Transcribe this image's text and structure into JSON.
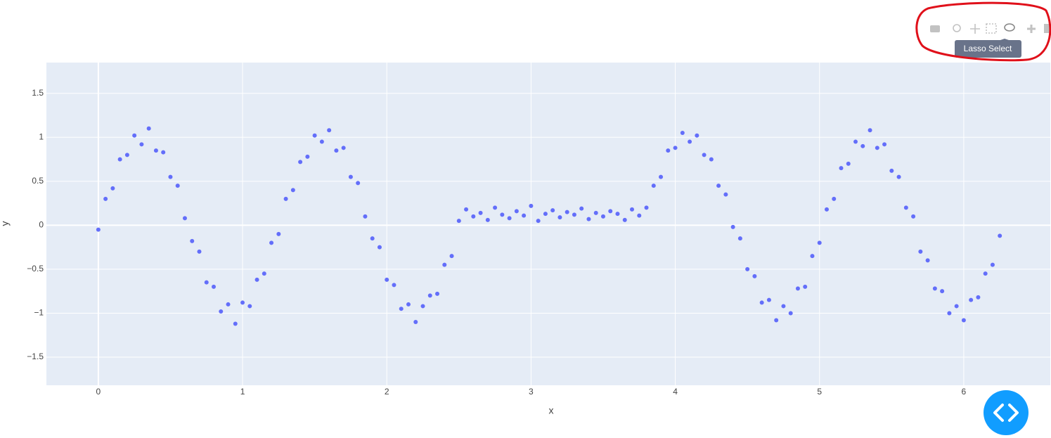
{
  "chart_data": {
    "type": "scatter",
    "x_label": "x",
    "y_label": "y",
    "x": [
      0,
      0.05,
      0.1,
      0.15,
      0.2,
      0.25,
      0.3,
      0.35,
      0.4,
      0.45,
      0.5,
      0.55,
      0.6,
      0.65,
      0.7,
      0.75,
      0.8,
      0.85,
      0.9,
      0.95,
      1,
      1.05,
      1.1,
      1.15,
      1.2,
      1.25,
      1.3,
      1.35,
      1.4,
      1.45,
      1.5,
      1.55,
      1.6,
      1.65,
      1.7,
      1.75,
      1.8,
      1.85,
      1.9,
      1.95,
      2,
      2.05,
      2.1,
      2.15,
      2.2,
      2.25,
      2.3,
      2.35,
      2.4,
      2.45,
      2.5,
      2.55,
      2.6,
      2.65,
      2.7,
      2.75,
      2.8,
      2.85,
      2.9,
      2.95,
      3,
      3.05,
      3.1,
      3.15,
      3.2,
      3.25,
      3.3,
      3.35,
      3.4,
      3.45,
      3.5,
      3.55,
      3.6,
      3.65,
      3.7,
      3.75,
      3.8,
      3.85,
      3.9,
      3.95,
      4,
      4.05,
      4.1,
      4.15,
      4.2,
      4.25,
      4.3,
      4.35,
      4.4,
      4.45,
      4.5,
      4.55,
      4.6,
      4.65,
      4.7,
      4.75,
      4.8,
      4.85,
      4.9,
      4.95,
      5,
      5.05,
      5.1,
      5.15,
      5.2,
      5.25,
      5.3,
      5.35,
      5.4,
      5.45,
      5.5,
      5.55,
      5.6,
      5.65,
      5.7,
      5.75,
      5.8,
      5.85,
      5.9,
      5.95,
      6,
      6.05,
      6.1,
      6.15,
      6.2,
      6.25
    ],
    "series": [
      {
        "color": "#636efa",
        "values": [
          -0.05,
          0.3,
          0.42,
          0.75,
          0.8,
          1.02,
          0.92,
          1.1,
          0.85,
          0.83,
          0.55,
          0.45,
          0.08,
          -0.18,
          -0.3,
          -0.65,
          -0.7,
          -0.98,
          -0.9,
          -1.12,
          -0.88,
          -0.92,
          -0.62,
          -0.55,
          -0.2,
          -0.1,
          0.3,
          0.4,
          0.72,
          0.78,
          1.02,
          0.95,
          1.08,
          0.85,
          0.88,
          0.55,
          0.48,
          0.1,
          -0.15,
          -0.25,
          -0.62,
          -0.68,
          -0.95,
          -0.9,
          -1.1,
          -0.92,
          -0.8,
          -0.78,
          -0.45,
          -0.35,
          0.05,
          0.18,
          0.1,
          0.14,
          0.06,
          0.2,
          0.12,
          0.08,
          0.16,
          0.11,
          0.22,
          0.05,
          0.13,
          0.17,
          0.09,
          0.15,
          0.12,
          0.19,
          0.07,
          0.14,
          0.1,
          0.16,
          0.13,
          0.06,
          0.18,
          0.11,
          0.2,
          0.45,
          0.55,
          0.85,
          0.88,
          1.05,
          0.95,
          1.02,
          0.8,
          0.75,
          0.45,
          0.35,
          -0.02,
          -0.15,
          -0.5,
          -0.58,
          -0.88,
          -0.85,
          -1.08,
          -0.92,
          -1,
          -0.72,
          -0.7,
          -0.35,
          -0.2,
          0.18,
          0.3,
          0.65,
          0.7,
          0.95,
          0.9,
          1.08,
          0.88,
          0.92,
          0.62,
          0.55,
          0.2,
          0.1,
          -0.3,
          -0.4,
          -0.72,
          -0.75,
          -1,
          -0.92,
          -1.08,
          -0.85,
          -0.82,
          -0.55,
          -0.45,
          -0.12
        ]
      }
    ],
    "xlim": [
      -0.36,
      6.6
    ],
    "ylim": [
      -1.82,
      1.85
    ],
    "xticks": [
      0,
      1,
      2,
      3,
      4,
      5,
      6
    ],
    "yticks": [
      {
        "value": -1.5,
        "label": "−1.5"
      },
      {
        "value": -1,
        "label": "−1"
      },
      {
        "value": -0.5,
        "label": "−0.5"
      },
      0,
      0.5,
      1,
      1.5
    ],
    "grid": true
  },
  "toolbar": {
    "tooltip": "Lasso Select"
  }
}
